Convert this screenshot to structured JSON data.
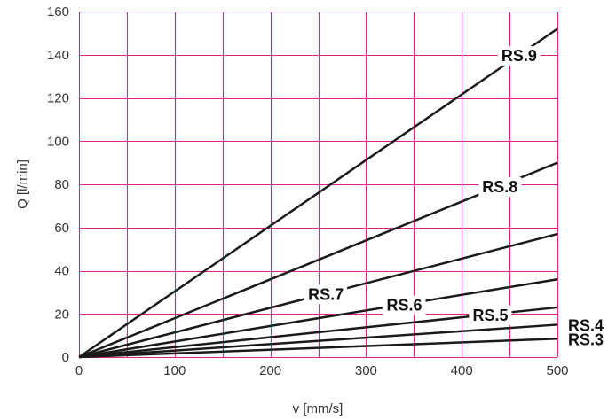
{
  "chart_data": {
    "type": "line",
    "xlabel": "v [mm/s]",
    "ylabel": "Q [l/min]",
    "xlim": [
      0,
      500
    ],
    "ylim": [
      0,
      160
    ],
    "x_ticks": [
      0,
      100,
      200,
      300,
      400,
      500
    ],
    "y_ticks": [
      0,
      20,
      40,
      60,
      80,
      100,
      120,
      140,
      160
    ],
    "x_grid_step": 50,
    "y_grid_step": 20,
    "grid": true,
    "grid_color": "#e0208c",
    "line_color": "#1a1a1a",
    "series": [
      {
        "name": "RS.9",
        "x": [
          0,
          500
        ],
        "y": [
          0,
          152
        ]
      },
      {
        "name": "RS.8",
        "x": [
          0,
          500
        ],
        "y": [
          0,
          90
        ]
      },
      {
        "name": "RS.7",
        "x": [
          0,
          500
        ],
        "y": [
          0,
          57
        ]
      },
      {
        "name": "RS.6",
        "x": [
          0,
          500
        ],
        "y": [
          0,
          36
        ]
      },
      {
        "name": "RS.5",
        "x": [
          0,
          500
        ],
        "y": [
          0,
          23
        ]
      },
      {
        "name": "RS.4",
        "x": [
          0,
          500
        ],
        "y": [
          0,
          15
        ]
      },
      {
        "name": "RS.3",
        "x": [
          0,
          500
        ],
        "y": [
          0,
          8.5
        ]
      }
    ]
  }
}
